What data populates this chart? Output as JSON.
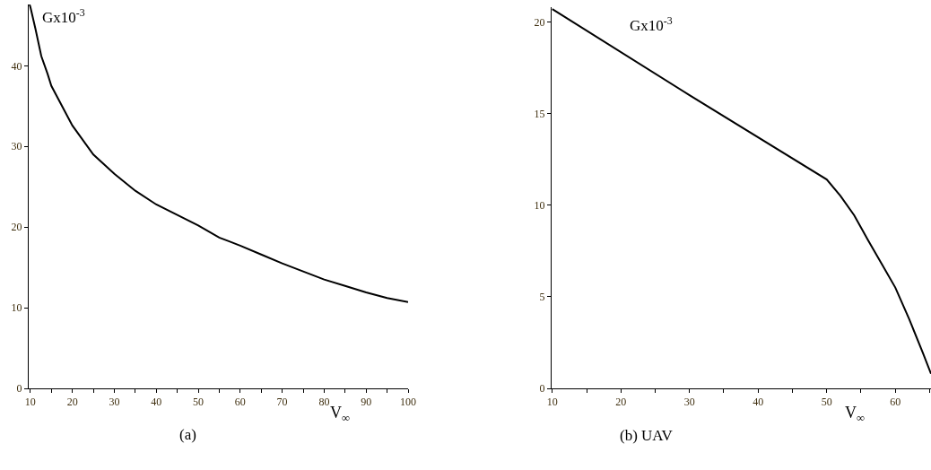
{
  "chart_data": [
    {
      "type": "line",
      "xlabel": "V$_{∞}$",
      "ylabel": "Gx10$^{-3}$",
      "annotations": [
        "(a)"
      ],
      "x": [
        9.8,
        10,
        11.2,
        12.6,
        14.1,
        15,
        20,
        25,
        30,
        35,
        40,
        45,
        50,
        55,
        60,
        65,
        70,
        75,
        80,
        85,
        90,
        95,
        100
      ],
      "series": [
        {
          "color": "#000000",
          "values": [
            47.6,
            47.3,
            44.6,
            41.2,
            39,
            37.5,
            32.6,
            29,
            26.6,
            24.5,
            22.8,
            21.5,
            20.2,
            18.7,
            17.7,
            16.6,
            15.5,
            14.5,
            13.5,
            12.7,
            11.9,
            11.2,
            10.7
          ]
        }
      ],
      "xlim": [
        9.6,
        100
      ],
      "ylim": [
        0,
        47.6
      ],
      "xticks": [
        10,
        {
          "value": 15,
          "label": null
        },
        20,
        {
          "value": 25,
          "label": null
        },
        30,
        {
          "value": 35,
          "label": null
        },
        40,
        {
          "value": 45,
          "label": null
        },
        50,
        {
          "value": 55,
          "label": null
        },
        60,
        {
          "value": 65,
          "label": null
        },
        70,
        {
          "value": 75,
          "label": null
        },
        80,
        {
          "value": 85,
          "label": null
        },
        90,
        {
          "value": 95,
          "label": null
        },
        100
      ],
      "yticks": [
        0,
        10,
        20,
        30,
        40
      ],
      "grid": false,
      "marker": "none",
      "line_style": "solid"
    },
    {
      "type": "line",
      "xlabel": "V$_{∞}$",
      "ylabel": "Gx10$^{-3}$",
      "annotations": [
        "(b) UAV"
      ],
      "x": [
        10,
        30,
        50,
        52,
        54,
        56,
        58,
        60,
        62,
        64,
        65.2
      ],
      "series": [
        {
          "color": "#000000",
          "values": [
            20.7,
            16,
            11.4,
            10.5,
            9.45,
            8.1,
            6.8,
            5.5,
            3.8,
            1.95,
            0.8
          ]
        }
      ],
      "xlim": [
        9.9,
        65.2
      ],
      "ylim": [
        0,
        20.8
      ],
      "xticks": [
        10,
        {
          "value": 15,
          "label": null
        },
        20,
        {
          "value": 25,
          "label": null
        },
        30,
        {
          "value": 35,
          "label": null
        },
        40,
        {
          "value": 45,
          "label": null
        },
        50,
        {
          "value": 55,
          "label": null
        },
        60,
        {
          "value": 65,
          "label": null
        }
      ],
      "yticks": [
        0,
        5,
        10,
        15,
        20
      ],
      "grid": false,
      "marker": "none",
      "line_style": "solid"
    }
  ]
}
